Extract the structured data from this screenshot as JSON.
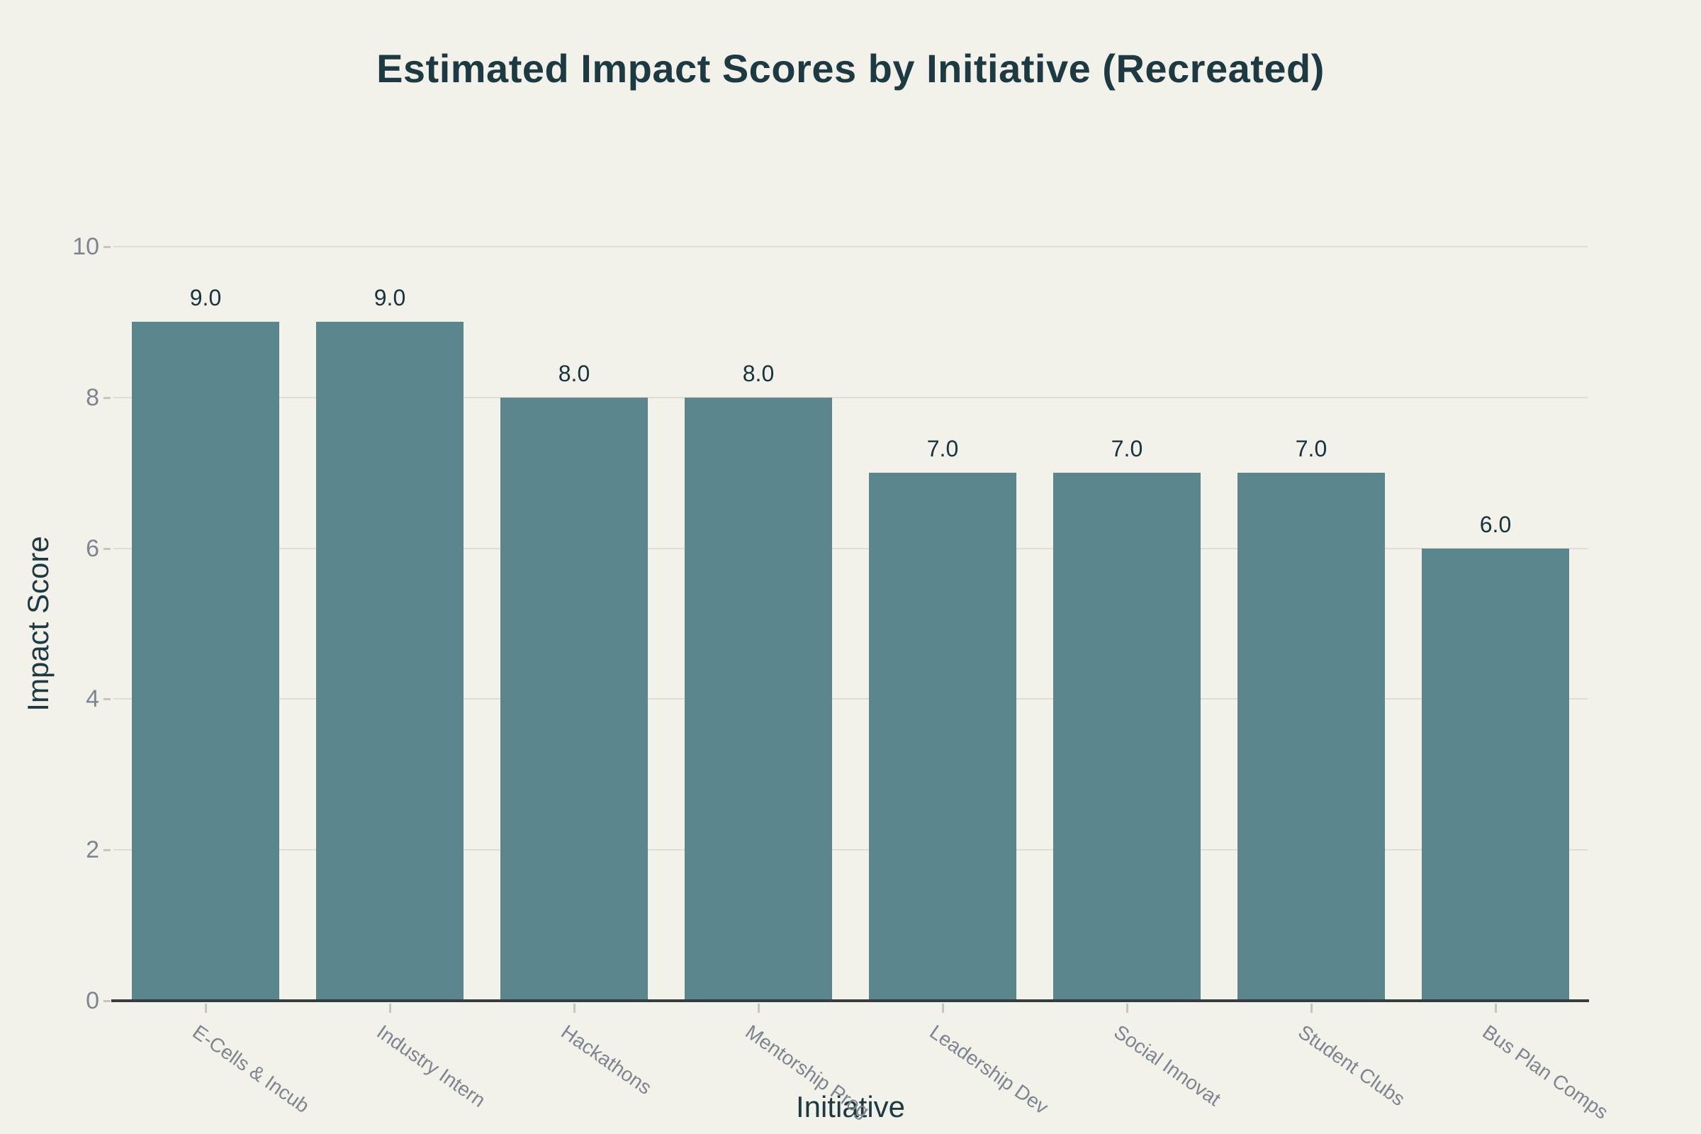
{
  "chart_data": {
    "type": "bar",
    "title": "Estimated Impact Scores by Initiative (Recreated)",
    "xlabel": "Initiative",
    "ylabel": "Impact Score",
    "categories": [
      "E-Cells & Incub",
      "Industry Intern",
      "Hackathons",
      "Mentorship Prog",
      "Leadership Dev",
      "Social Innovat",
      "Student Clubs",
      "Bus Plan Comps"
    ],
    "values": [
      9.0,
      9.0,
      8.0,
      8.0,
      7.0,
      7.0,
      7.0,
      6.0
    ],
    "bar_labels": [
      "9.0",
      "9.0",
      "8.0",
      "8.0",
      "7.0",
      "7.0",
      "7.0",
      "6.0"
    ],
    "ylim": [
      0,
      10
    ],
    "yticks": [
      0,
      2,
      4,
      6,
      8,
      10
    ],
    "ytick_labels": [
      "0",
      "2",
      "4",
      "6",
      "8",
      "10"
    ],
    "grid": "horizontal",
    "legend": "none",
    "colors": {
      "background": "#f2f1ea",
      "bar": "#5b868d",
      "dark_text": "#1d3a42",
      "value_label_text": "#17333c",
      "tick_label_text": "#7d8690",
      "gridline": "#dfddd5",
      "axis_line": "#343d3f",
      "tick_mark": "#c6c5be"
    }
  }
}
